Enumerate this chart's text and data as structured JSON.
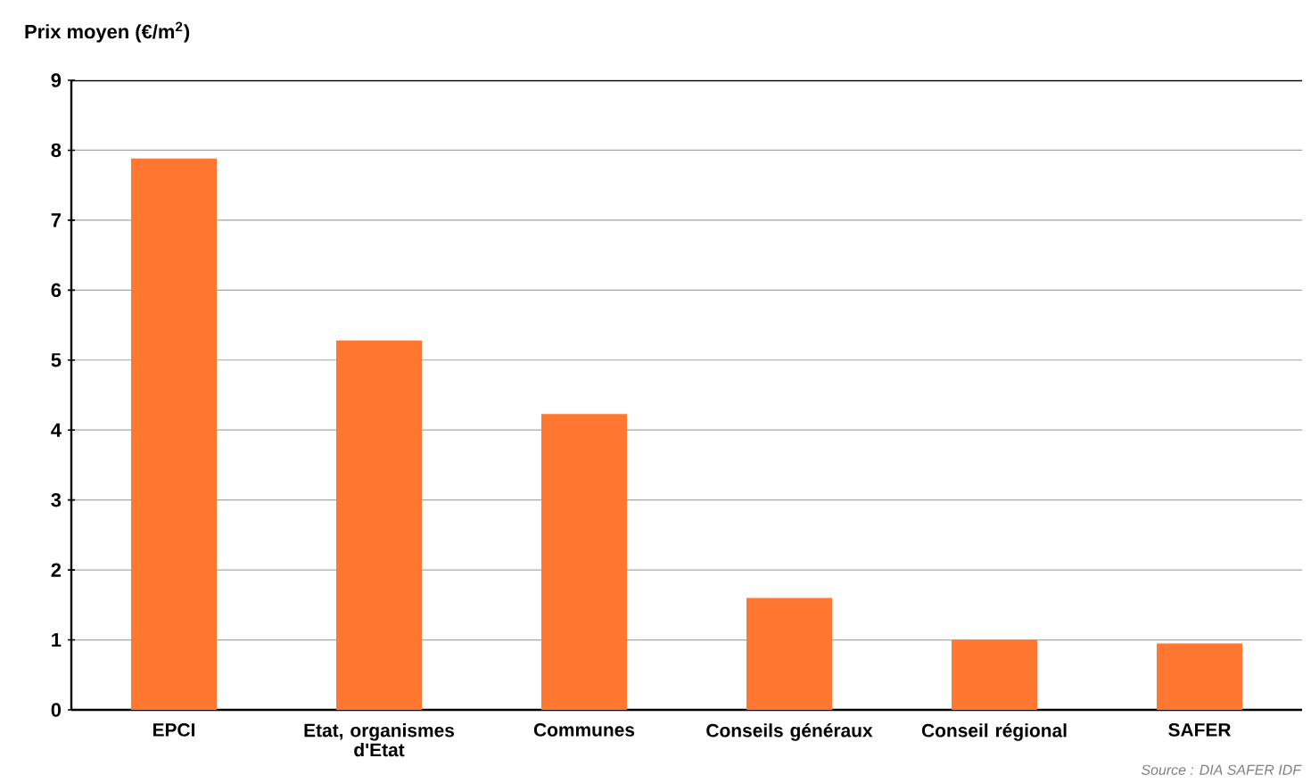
{
  "chart_data": {
    "type": "bar",
    "ylabel": "Prix moyen (€/m$^{2}$)",
    "categories": [
      "EPCI",
      "Etat, organismes d'Etat",
      "Communes",
      "Conseils généraux",
      "Conseil régional",
      "SAFER"
    ],
    "values": [
      7.88,
      5.28,
      4.23,
      1.6,
      1.0,
      0.95
    ],
    "color": "#ff7730",
    "ylim": [
      0,
      9
    ],
    "yticks": [
      0,
      1,
      2,
      3,
      4,
      5,
      6,
      7,
      8,
      9
    ],
    "grid": "y",
    "annotations": [
      "Source : DIA SAFER IDF"
    ]
  }
}
